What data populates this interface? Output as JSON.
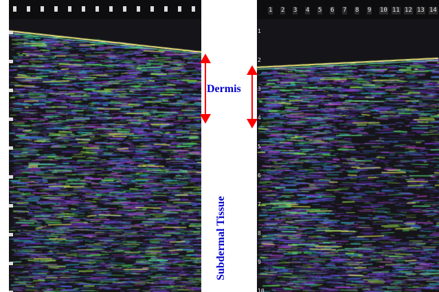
{
  "labels": {
    "dermis": "Dermis",
    "subdermal": "Subdermal Tissue"
  },
  "right_panel": {
    "top_scale": [
      "1",
      "2",
      "3",
      "4",
      "5",
      "6",
      "7",
      "8",
      "9",
      "10",
      "11",
      "12",
      "13",
      "14"
    ],
    "side_scale": [
      "1",
      "2",
      "3",
      "4",
      "5",
      "6",
      "7",
      "8",
      "9",
      "10"
    ]
  },
  "colors": {
    "label": "#0000cc",
    "arrow": "#ff0000",
    "background": "#141418"
  }
}
